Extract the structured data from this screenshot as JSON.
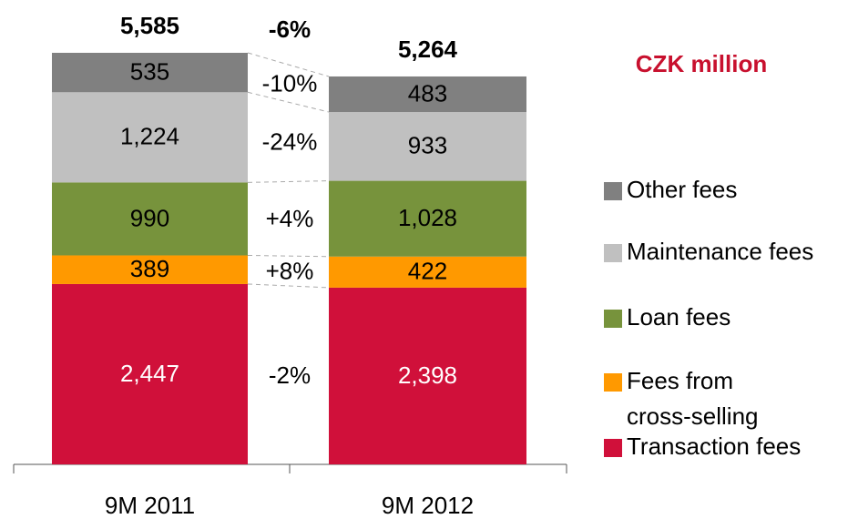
{
  "chart_data": {
    "type": "stacked-bar",
    "subtitle": "CZK million",
    "categories": [
      "9M 2011",
      "9M 2012"
    ],
    "series": [
      {
        "name": "Transaction fees",
        "color": "#d0103a",
        "values": [
          2447,
          2398
        ],
        "value_labels": [
          "2,447",
          "2,398"
        ],
        "change": "-2%"
      },
      {
        "name": "Fees from cross-selling",
        "color": "#ff9900",
        "values": [
          389,
          422
        ],
        "change": "+8%"
      },
      {
        "name": "Loan fees",
        "color": "#77933c",
        "values": [
          990,
          1028
        ],
        "value_labels": [
          "990",
          "1,028"
        ],
        "change": "+4%"
      },
      {
        "name": "Maintenance fees",
        "color": "#c0c0c0",
        "values": [
          1224,
          933
        ],
        "value_labels": [
          "1,224",
          "933"
        ],
        "change": "-24%"
      },
      {
        "name": "Other fees",
        "color": "#808080",
        "values": [
          535,
          483
        ],
        "change": "-10%"
      }
    ],
    "totals": [
      5585,
      5264
    ],
    "total_labels": [
      "5,585",
      "5,264"
    ],
    "total_change": "-6%"
  }
}
